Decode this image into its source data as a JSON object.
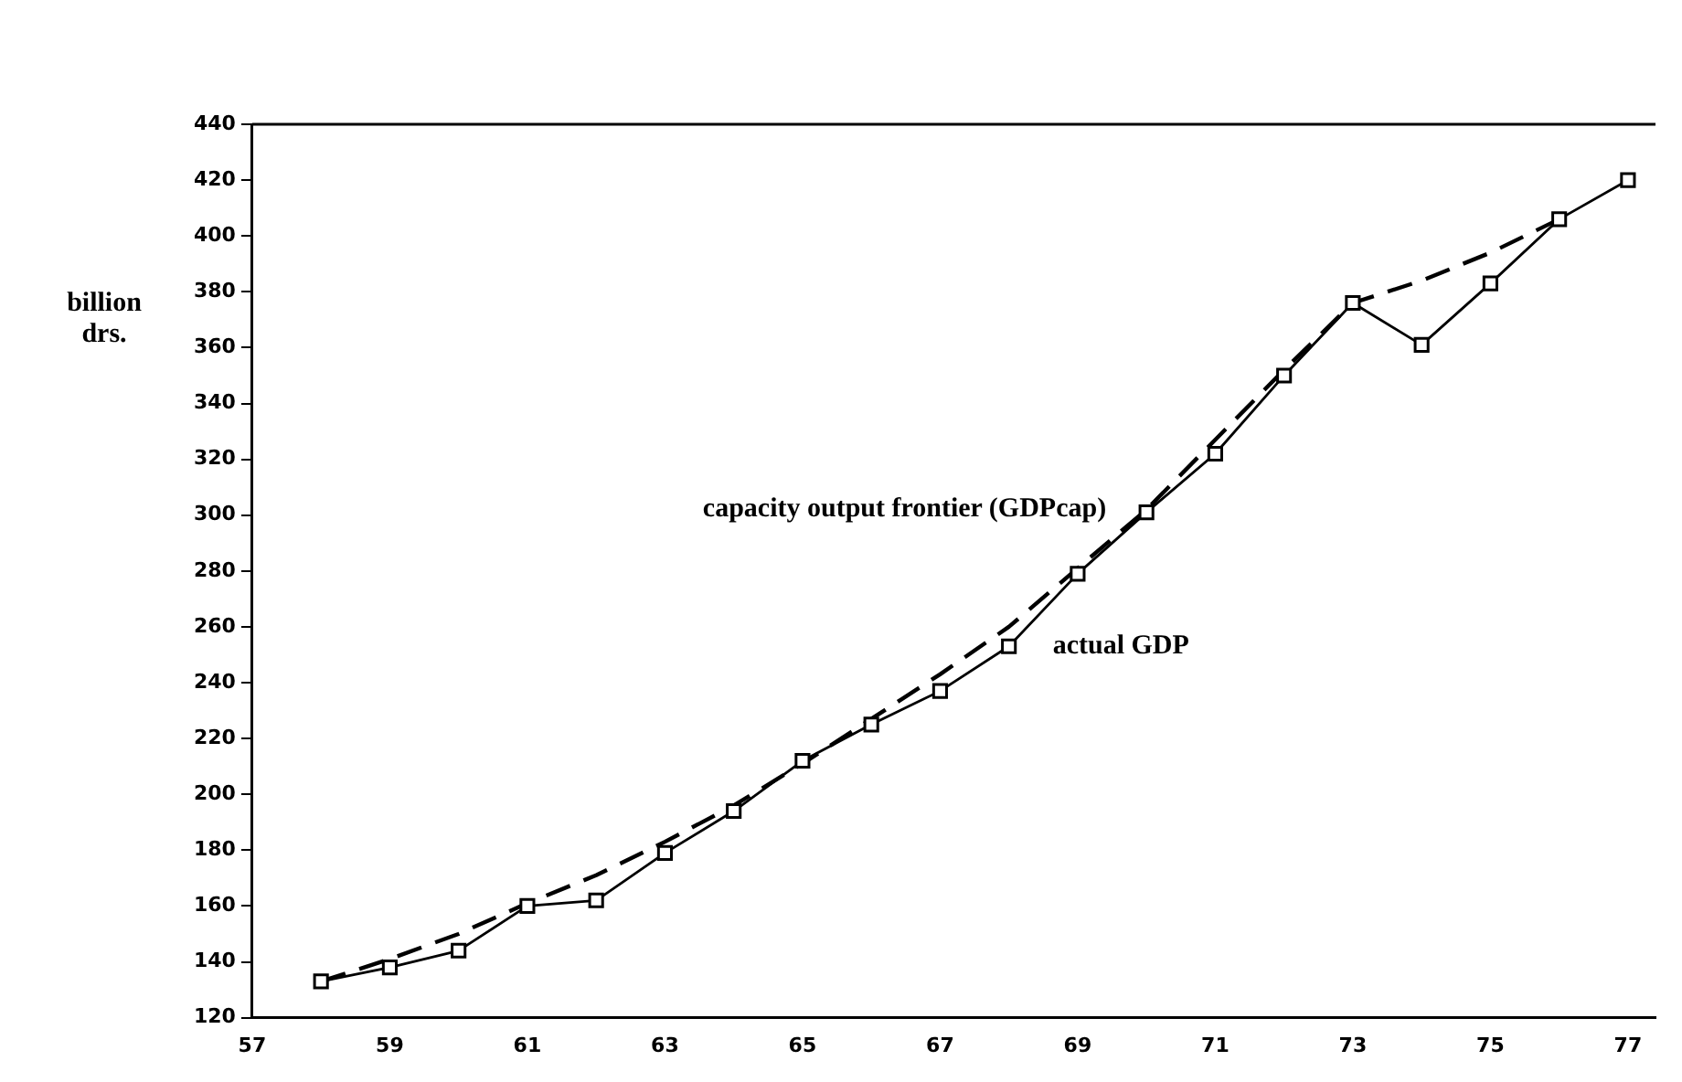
{
  "chart_data": {
    "type": "line",
    "ylabel": "billion drs.",
    "x": [
      58,
      59,
      60,
      61,
      62,
      63,
      64,
      65,
      66,
      67,
      68,
      69,
      70,
      71,
      72,
      73,
      74,
      75,
      76,
      77
    ],
    "series": [
      {
        "name": "actual GDP",
        "color": "#000000",
        "marker": "square",
        "line_style": "solid",
        "values": [
          133,
          138,
          144,
          160,
          162,
          179,
          194,
          212,
          225,
          237,
          253,
          279,
          301,
          322,
          350,
          376,
          361,
          383,
          406,
          420
        ]
      },
      {
        "name": "capacity output frontier (GDPcap)",
        "color": "#000000",
        "marker": "none",
        "line_style": "dashed",
        "values": [
          133,
          141,
          150,
          161,
          171,
          183,
          196,
          211,
          227,
          243,
          260,
          281,
          302,
          327,
          352,
          376,
          384,
          394,
          406,
          null
        ]
      }
    ],
    "xlim": [
      57,
      77.4
    ],
    "xticks": [
      57,
      59,
      61,
      63,
      65,
      67,
      69,
      71,
      73,
      75,
      77
    ],
    "ylim": [
      120,
      440
    ],
    "yticks": [
      120,
      140,
      160,
      180,
      200,
      220,
      240,
      260,
      280,
      300,
      320,
      340,
      360,
      380,
      400,
      420,
      440
    ],
    "grid": false,
    "legend": false
  }
}
